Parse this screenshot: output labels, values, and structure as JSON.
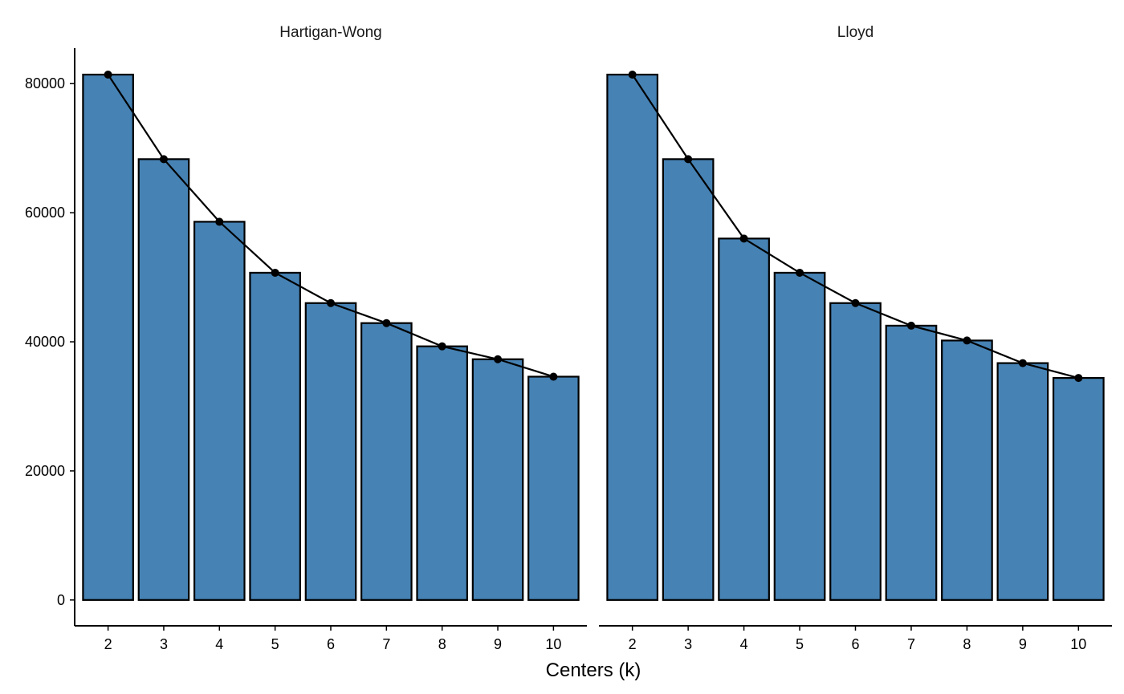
{
  "chart_data": {
    "type": "bar",
    "xlabel": "Centers (k)",
    "ylabel": "",
    "ylim": [
      -4000,
      85500
    ],
    "y_ticks": [
      0,
      20000,
      40000,
      60000,
      80000
    ],
    "y_tick_labels": [
      "0",
      "20000",
      "40000",
      "60000",
      "80000"
    ],
    "categories": [
      "2",
      "3",
      "4",
      "5",
      "6",
      "7",
      "8",
      "9",
      "10"
    ],
    "bar_color": "#4682B4",
    "line_color": "#000000",
    "grid": false,
    "legend": "none",
    "overlay": "line with points through bar tops",
    "panels": [
      {
        "name": "Hartigan-Wong",
        "values": [
          81400,
          68300,
          58600,
          50700,
          46000,
          42900,
          39300,
          37300,
          34600
        ]
      },
      {
        "name": "Lloyd",
        "values": [
          81400,
          68300,
          56000,
          50700,
          46000,
          42500,
          40200,
          36700,
          34400
        ]
      }
    ]
  }
}
